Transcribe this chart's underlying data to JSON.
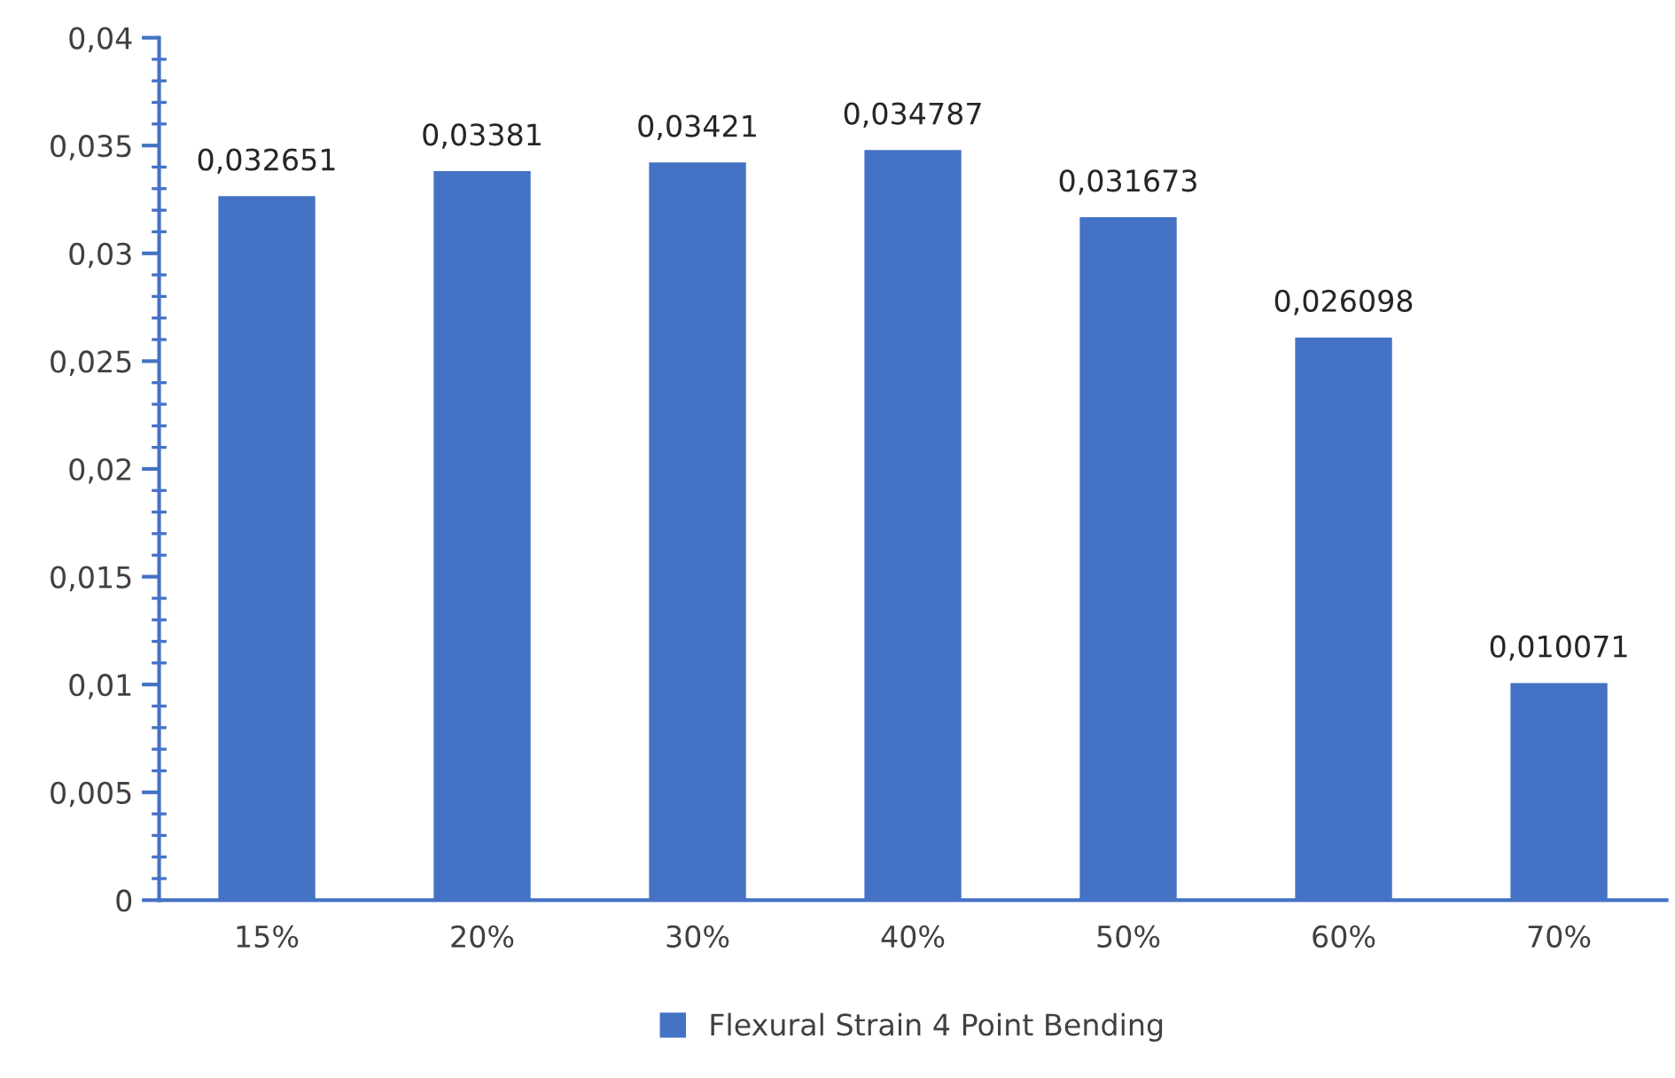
{
  "chart_data": {
    "type": "bar",
    "categories": [
      "15%",
      "20%",
      "30%",
      "40%",
      "50%",
      "60%",
      "70%"
    ],
    "series": [
      {
        "name": "Flexural Strain 4 Point Bending",
        "color": "#4472c4",
        "values": [
          0.032651,
          0.03381,
          0.03421,
          0.034787,
          0.031673,
          0.026098,
          0.010071
        ],
        "value_labels": [
          "0,032651",
          "0,03381",
          "0,03421",
          "0,034787",
          "0,031673",
          "0,026098",
          "0,010071"
        ]
      }
    ],
    "ylim": [
      0,
      0.04
    ],
    "yticks": [
      {
        "value": 0,
        "label": "0"
      },
      {
        "value": 0.005,
        "label": "0,005"
      },
      {
        "value": 0.01,
        "label": "0,01"
      },
      {
        "value": 0.015,
        "label": "0,015"
      },
      {
        "value": 0.02,
        "label": "0,02"
      },
      {
        "value": 0.025,
        "label": "0,025"
      },
      {
        "value": 0.03,
        "label": "0,03"
      },
      {
        "value": 0.035,
        "label": "0,035"
      },
      {
        "value": 0.04,
        "label": "0,04"
      }
    ],
    "legend": "bottom",
    "grid": false
  }
}
